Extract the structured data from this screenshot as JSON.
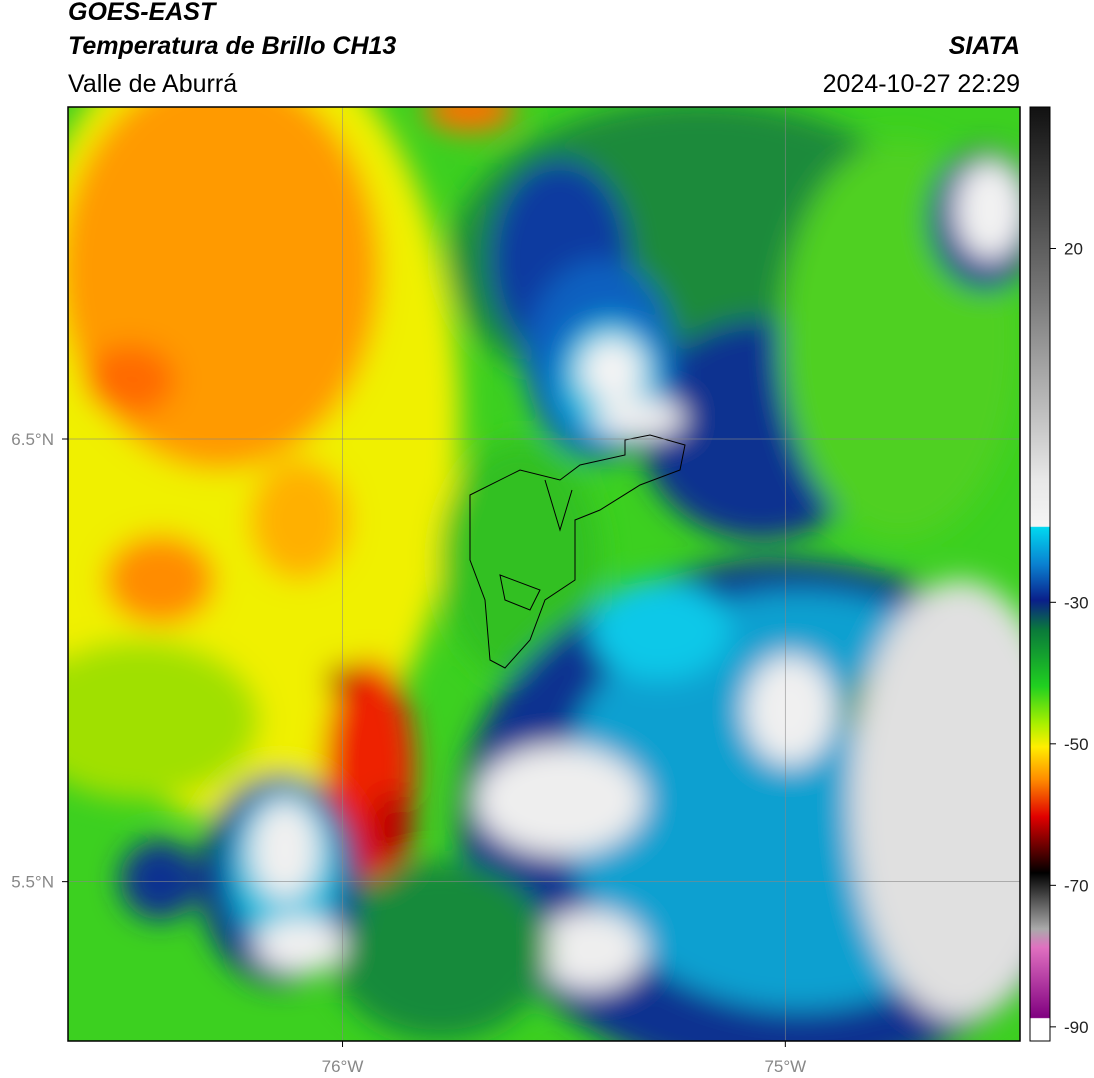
{
  "header": {
    "title": "GOES-EAST",
    "subtitle": "Temperatura de Brillo CH13",
    "region": "Valle de Aburrá",
    "source": "SIATA",
    "datetime": "2024-10-27 22:29"
  },
  "map": {
    "xlim": [
      -76.62,
      -74.47
    ],
    "ylim": [
      5.14,
      7.25
    ],
    "xticks": [
      {
        "value": -76,
        "label": "76°W"
      },
      {
        "value": -75,
        "label": "75°W"
      }
    ],
    "yticks": [
      {
        "value": 6.5,
        "label": "6.5°N"
      },
      {
        "value": 5.5,
        "label": "5.5°N"
      }
    ],
    "grid": true
  },
  "colorbar": {
    "lim": [
      -92,
      40
    ],
    "ticks": [
      20,
      -30,
      -50,
      -70,
      -90
    ]
  }
}
